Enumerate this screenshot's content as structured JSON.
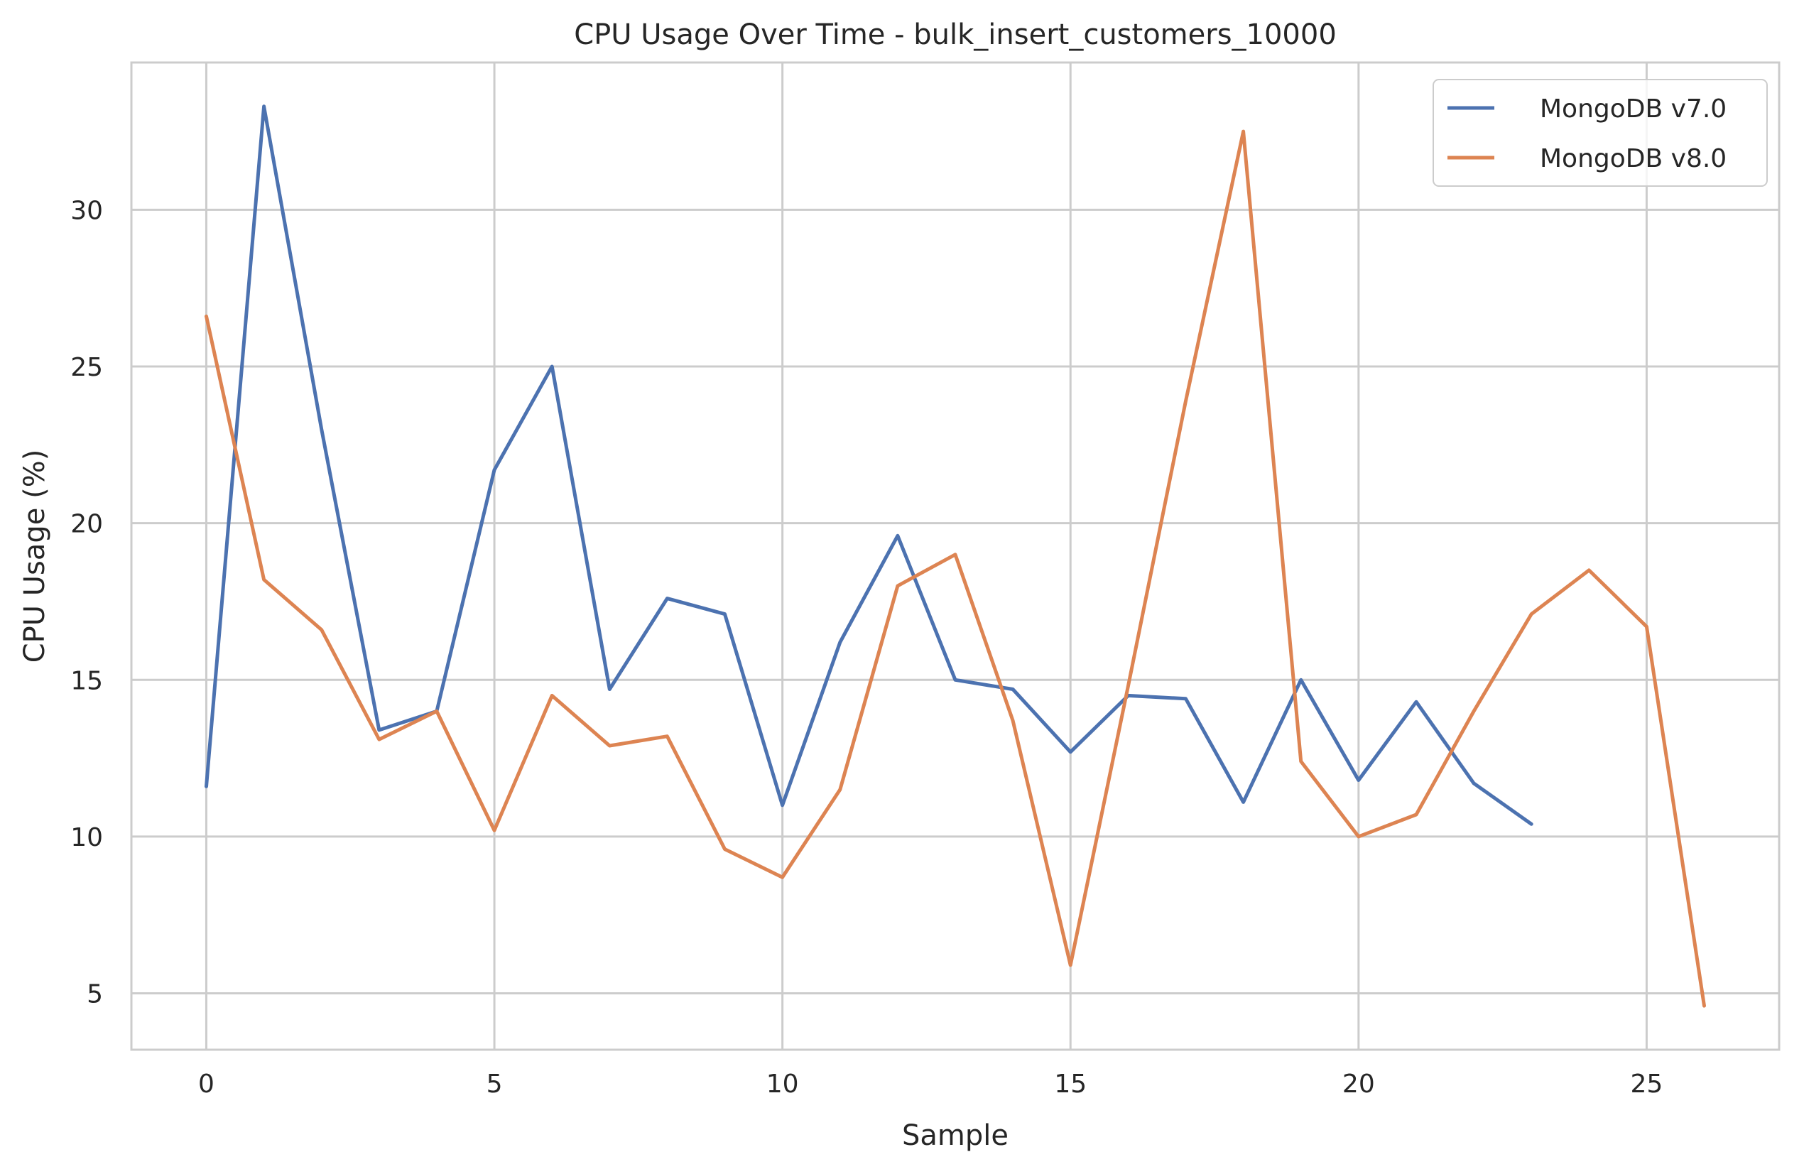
{
  "chart_data": {
    "type": "line",
    "title": "CPU Usage Over Time - bulk_insert_customers_10000",
    "xlabel": "Sample",
    "ylabel": "CPU Usage (%)",
    "xlim": [
      -1.3,
      27.3
    ],
    "ylim": [
      3.2,
      34.7
    ],
    "xticks": [
      0,
      5,
      10,
      15,
      20,
      25
    ],
    "yticks": [
      5,
      10,
      15,
      20,
      25,
      30
    ],
    "grid": true,
    "legend_position": "upper right",
    "series": [
      {
        "name": "MongoDB v7.0",
        "color": "#4c72b0",
        "x": [
          0,
          1,
          2,
          3,
          4,
          5,
          6,
          7,
          8,
          9,
          10,
          11,
          12,
          13,
          14,
          15,
          16,
          17,
          18,
          19,
          20,
          21,
          22,
          23
        ],
        "y": [
          11.6,
          33.3,
          23.0,
          13.4,
          14.0,
          21.7,
          25.0,
          14.7,
          17.6,
          17.1,
          11.0,
          16.2,
          19.6,
          15.0,
          14.7,
          12.7,
          14.5,
          14.4,
          11.1,
          15.0,
          11.8,
          14.3,
          11.7,
          10.4
        ]
      },
      {
        "name": "MongoDB v8.0",
        "color": "#dd8452",
        "x": [
          0,
          1,
          2,
          3,
          4,
          5,
          6,
          7,
          8,
          9,
          10,
          11,
          12,
          13,
          14,
          15,
          16,
          17,
          18,
          19,
          20,
          21,
          22,
          23,
          24,
          25,
          26
        ],
        "y": [
          26.6,
          18.2,
          16.6,
          13.1,
          14.0,
          10.2,
          14.5,
          12.9,
          13.2,
          9.6,
          8.7,
          11.5,
          18.0,
          19.0,
          13.7,
          5.9,
          14.8,
          23.9,
          32.5,
          12.4,
          10.0,
          10.7,
          14.0,
          17.1,
          18.5,
          16.7,
          4.6
        ]
      }
    ]
  }
}
